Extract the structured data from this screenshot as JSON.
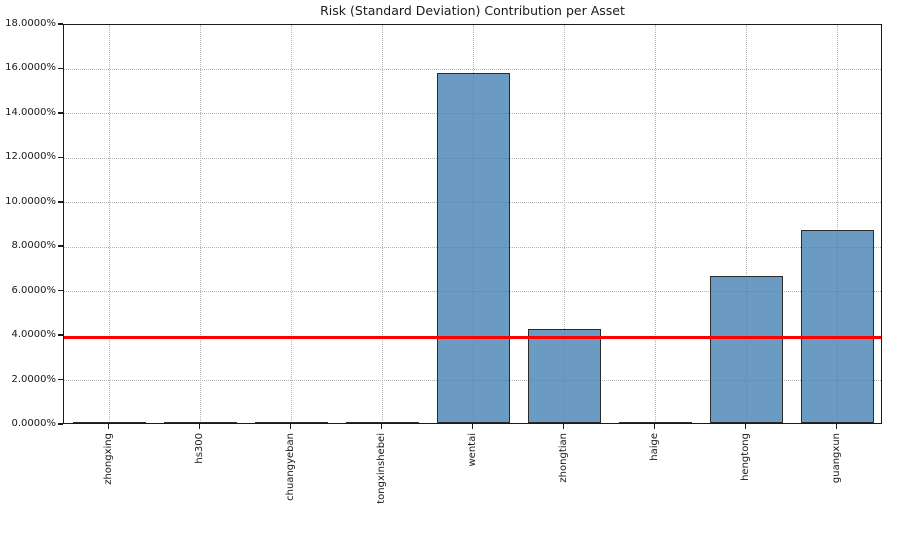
{
  "chart_data": {
    "type": "bar",
    "title": "Risk (Standard Deviation) Contribution per Asset",
    "categories": [
      "zhongxing",
      "hs300",
      "chuangyeban",
      "tongxinshebei",
      "wentai",
      "zhongtian",
      "haige",
      "hengtong",
      "guangxun"
    ],
    "values": [
      0.0,
      0.0,
      0.0,
      0.0,
      15.75,
      4.21,
      0.05,
      6.63,
      8.7
    ],
    "unit": "%",
    "xlabel": "",
    "ylabel": "",
    "ylim": [
      0,
      18
    ],
    "ytick_step": 2,
    "ytick_decimals": 4,
    "xtick_rotation_deg": 90,
    "grid": {
      "visible": true,
      "line_style": "dotted",
      "axes": "both"
    },
    "legend": "none",
    "reference_line": {
      "value": 3.93,
      "color": "#ff0000"
    }
  },
  "style": {
    "background": "#ffffff",
    "bar_fill": "rgba(70,130,180,0.8)",
    "bar_edge": "#2b2b2b",
    "grid_color": "#b4b4b4",
    "axis_color": "#1a1a1a",
    "text_color": "#1a1a1a",
    "reference_line_color": "#ff0000"
  }
}
